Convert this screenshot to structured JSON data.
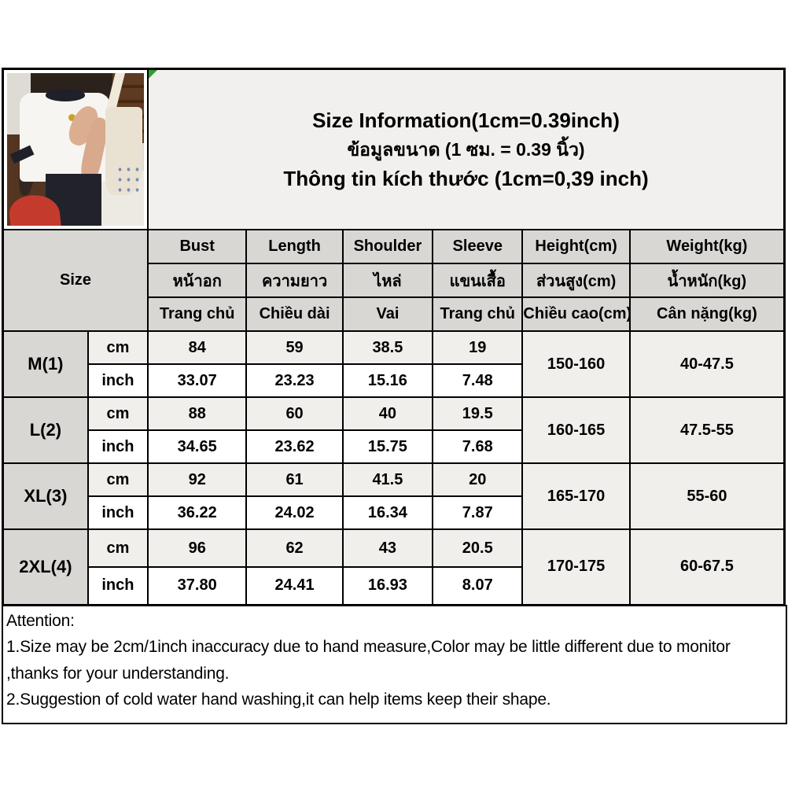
{
  "title": {
    "en": "Size Information(1cm=0.39inch)",
    "th": "ข้อมูลขนาด (1 ซม. = 0.39 นิ้ว)",
    "vi": "Thông tin kích thước (1cm=0,39 inch)"
  },
  "table": {
    "size_header": "Size",
    "headers_en": [
      "Bust",
      "Length",
      "Shoulder",
      "Sleeve",
      "Height(cm)",
      "Weight(kg)"
    ],
    "headers_th": [
      "หน้าอก",
      "ความยาว",
      "ไหล่",
      "แขนเสื้อ",
      "ส่วนสูง(cm)",
      "น้ำหนัก(kg)"
    ],
    "headers_vi": [
      "Trang chủ",
      "Chiều dài",
      "Vai",
      "Trang chủ",
      "Chiều cao(cm)",
      "Cân nặng(kg)"
    ],
    "units": [
      "cm",
      "inch"
    ],
    "sizes": [
      {
        "label": "M(1)",
        "cm": [
          "84",
          "59",
          "38.5",
          "19"
        ],
        "inch": [
          "33.07",
          "23.23",
          "15.16",
          "7.48"
        ],
        "height": "150-160",
        "weight": "40-47.5"
      },
      {
        "label": "L(2)",
        "cm": [
          "88",
          "60",
          "40",
          "19.5"
        ],
        "inch": [
          "34.65",
          "23.62",
          "15.75",
          "7.68"
        ],
        "height": "160-165",
        "weight": "47.5-55"
      },
      {
        "label": "XL(3)",
        "cm": [
          "92",
          "61",
          "41.5",
          "20"
        ],
        "inch": [
          "36.22",
          "24.02",
          "16.34",
          "7.87"
        ],
        "height": "165-170",
        "weight": "55-60"
      },
      {
        "label": "2XL(4)",
        "cm": [
          "96",
          "62",
          "43",
          "20.5"
        ],
        "inch": [
          "37.80",
          "24.41",
          "16.93",
          "8.07"
        ],
        "height": "170-175",
        "weight": "60-67.5"
      }
    ]
  },
  "attention": {
    "title": "Attention:",
    "lines": [
      "1.Size may be 2cm/1inch inaccuracy due to hand measure,Color may be little different due to monitor",
      ",thanks for your understanding.",
      "2.Suggestion of cold water hand washing,it can help items keep their shape."
    ]
  },
  "colors": {
    "header_bg": "#d8d7d4",
    "stripe_bg": "#f0efec",
    "title_bg": "#f1f0ee",
    "border": "#000000",
    "marker_green": "#2f9e2f"
  }
}
